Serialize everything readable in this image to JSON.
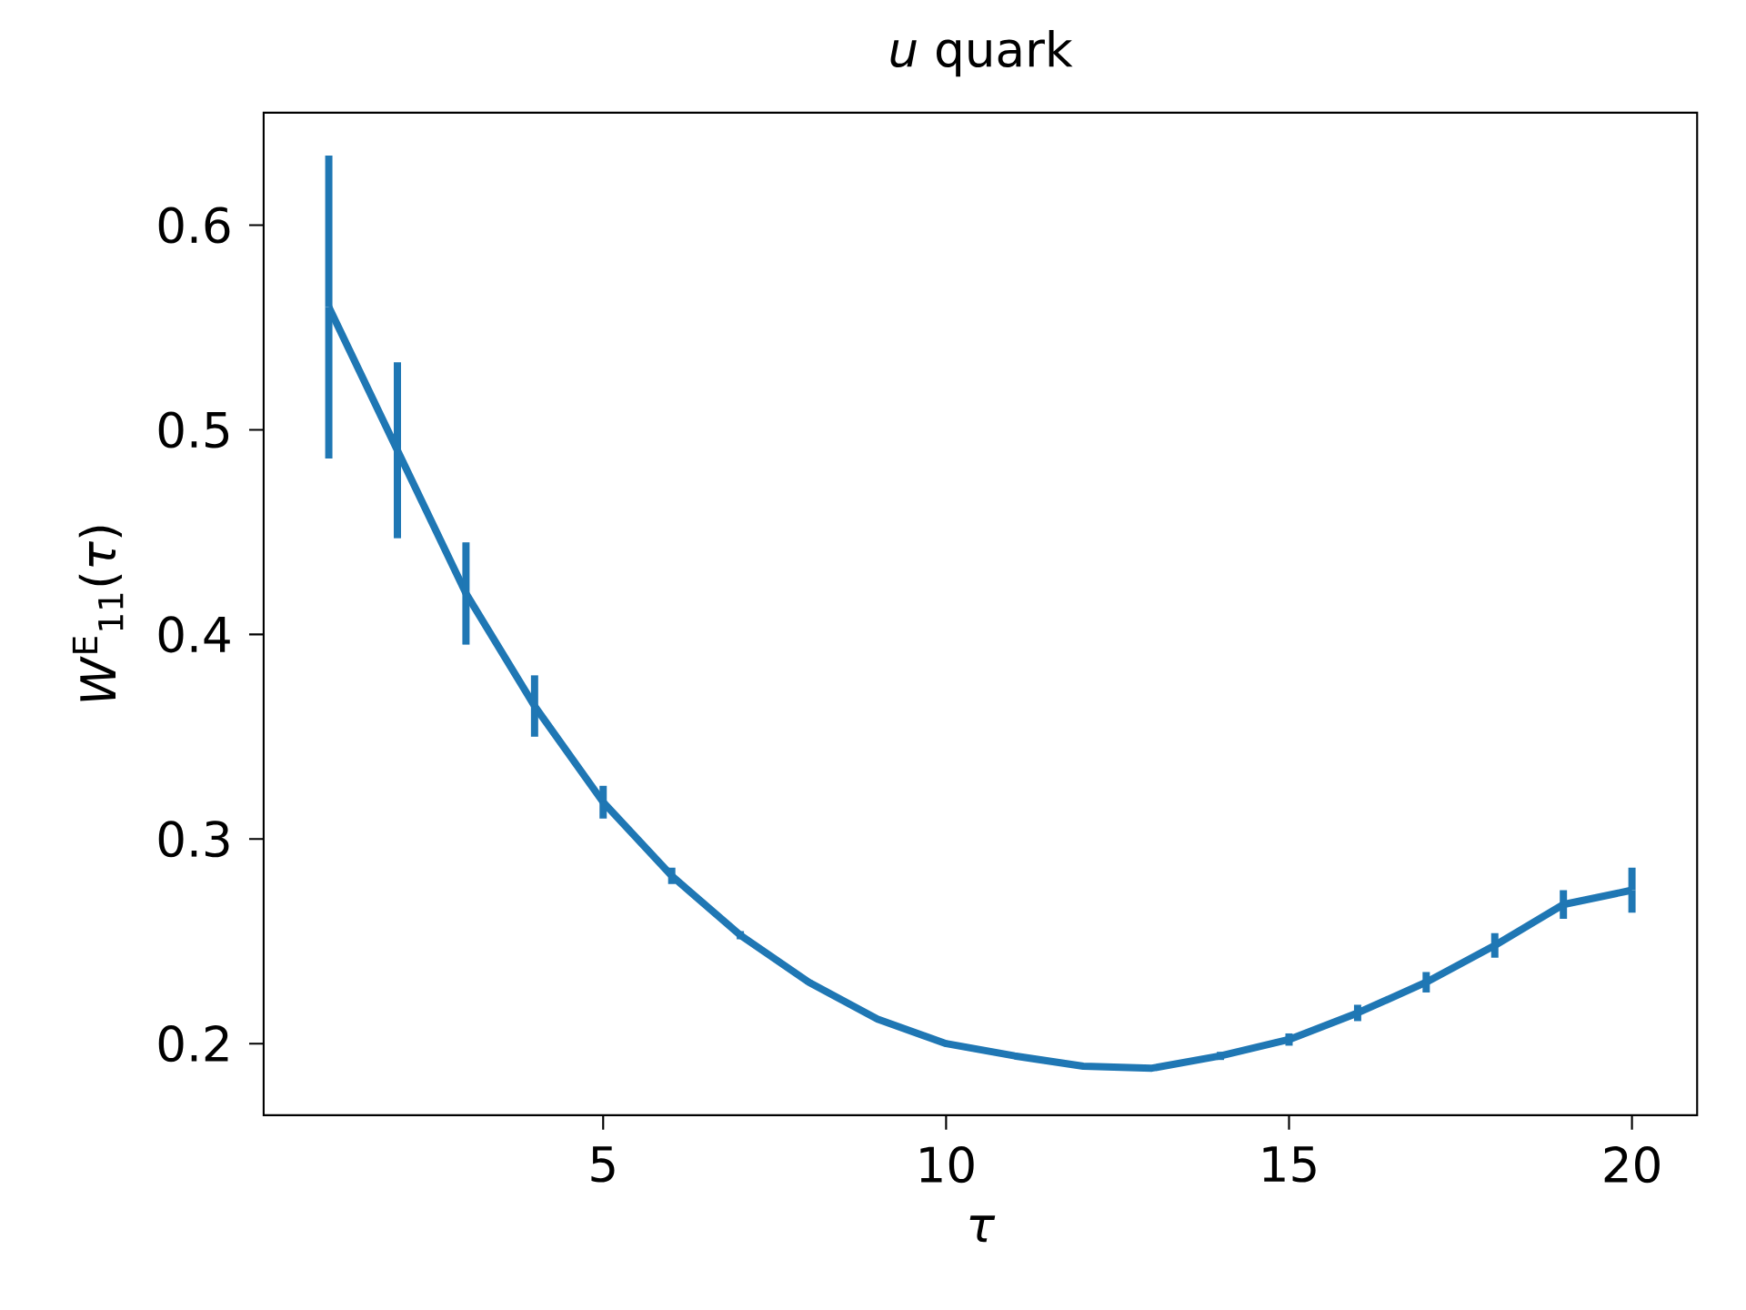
{
  "chart_data": {
    "type": "line",
    "title": "*u* quark",
    "xlabel": "τ",
    "ylabel": "*W*$^{E}$$_{11}$(*τ*)",
    "x": [
      1,
      2,
      3,
      4,
      5,
      6,
      7,
      8,
      9,
      10,
      11,
      12,
      13,
      14,
      15,
      16,
      17,
      18,
      19,
      20
    ],
    "series": [
      {
        "color": "#1f77b4",
        "values": [
          0.56,
          0.49,
          0.42,
          0.365,
          0.318,
          0.282,
          0.253,
          0.23,
          0.212,
          0.2,
          0.194,
          0.189,
          0.188,
          0.194,
          0.202,
          0.215,
          0.23,
          0.248,
          0.268,
          0.275
        ],
        "errors": [
          0.074,
          0.043,
          0.025,
          0.015,
          0.008,
          0.004,
          0.002,
          0.001,
          0.001,
          0.001,
          0.001,
          0.001,
          0.001,
          0.002,
          0.003,
          0.004,
          0.005,
          0.006,
          0.007,
          0.011
        ]
      }
    ],
    "xlim": [
      0.05,
      20.95
    ],
    "ylim": [
      0.165,
      0.655
    ],
    "xticks": [
      5,
      10,
      15,
      20
    ],
    "yticks": [
      0.2,
      0.3,
      0.4,
      0.5,
      0.6
    ],
    "marker": "none",
    "line_style": "solid"
  }
}
